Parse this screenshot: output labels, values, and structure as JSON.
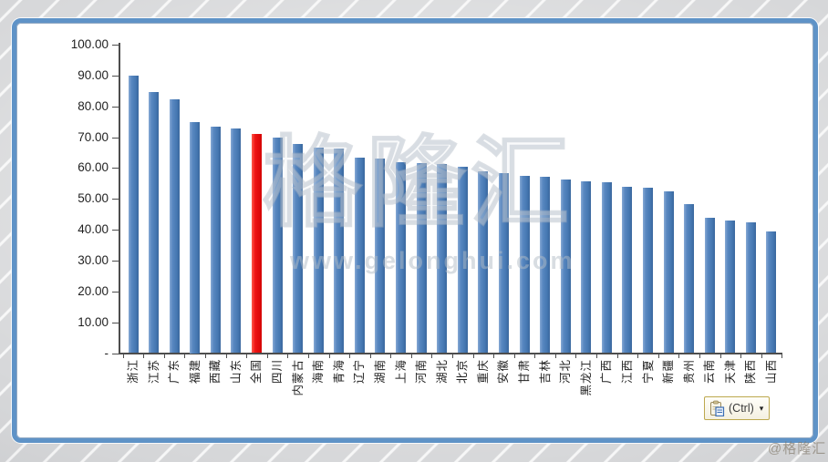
{
  "watermark": {
    "brand": "格隆汇",
    "url": "www.gelonghui.com",
    "credit": "@格隆汇"
  },
  "paste_button": {
    "label": "(Ctrl)",
    "dropdown": "▾",
    "icon": "clipboard-icon"
  },
  "chart_data": {
    "type": "bar",
    "title": "",
    "xlabel": "",
    "ylabel": "",
    "categories": [
      "浙江",
      "江苏",
      "广东",
      "福建",
      "西藏",
      "山东",
      "全国",
      "四川",
      "内蒙古",
      "海南",
      "青海",
      "辽宁",
      "湖南",
      "上海",
      "河南",
      "湖北",
      "北京",
      "重庆",
      "安徽",
      "甘肃",
      "吉林",
      "河北",
      "黑龙江",
      "广西",
      "江西",
      "宁夏",
      "新疆",
      "贵州",
      "云南",
      "天津",
      "陕西",
      "山西"
    ],
    "values": [
      90.0,
      84.6,
      82.2,
      75.0,
      73.4,
      72.9,
      71.0,
      69.9,
      67.8,
      66.7,
      66.4,
      63.4,
      63.2,
      61.8,
      61.6,
      61.2,
      60.4,
      58.8,
      58.2,
      57.6,
      57.1,
      56.3,
      55.6,
      55.4,
      54.0,
      53.6,
      52.5,
      48.4,
      44.0,
      42.9,
      42.4,
      39.5
    ],
    "highlight_category": "全国",
    "highlight_color": "#ee1414",
    "bar_color": "#4f81bd",
    "y_ticks": [
      "100.00",
      "90.00",
      "80.00",
      "70.00",
      "60.00",
      "50.00",
      "40.00",
      "30.00",
      "20.00",
      "10.00",
      "-"
    ],
    "ylim": [
      0,
      100
    ],
    "grid": false,
    "legend": null,
    "x_label_rotation": -90
  }
}
